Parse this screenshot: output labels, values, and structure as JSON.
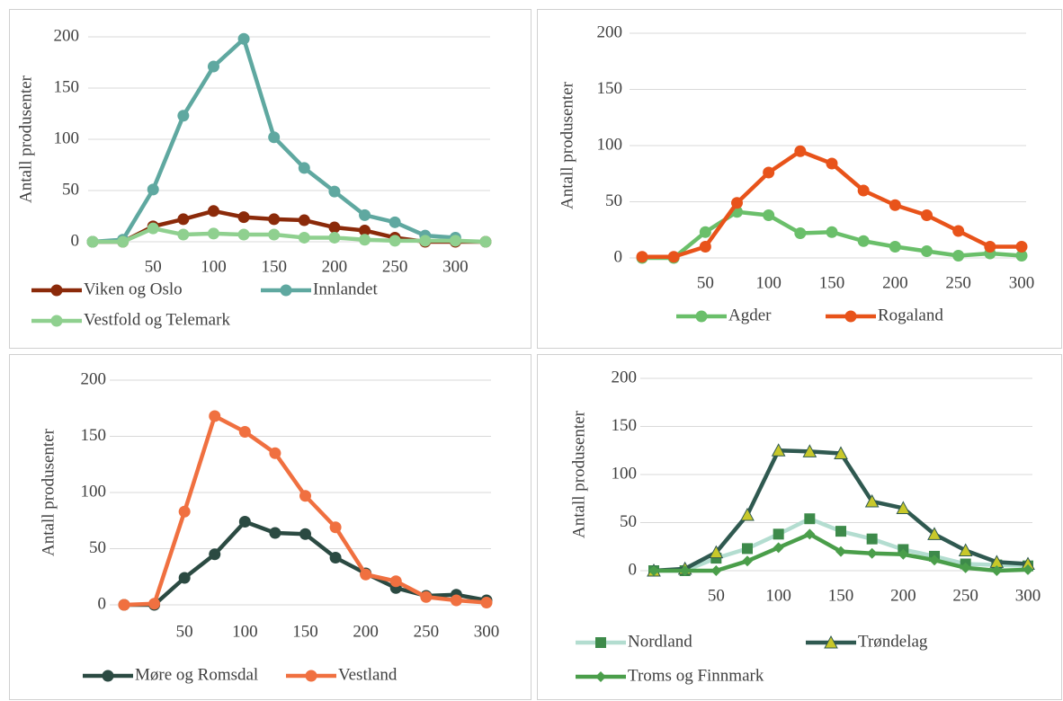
{
  "chart_data": [
    {
      "type": "line",
      "y_label": "Antall produsenter",
      "x": [
        0,
        25,
        50,
        75,
        100,
        125,
        150,
        175,
        200,
        225,
        250,
        275,
        300,
        325
      ],
      "xlim": [
        0,
        325
      ],
      "xticks": [
        50,
        100,
        150,
        200,
        250,
        300
      ],
      "ylim": [
        0,
        200
      ],
      "yticks": [
        0,
        50,
        100,
        150,
        200
      ],
      "grid": true,
      "series": [
        {
          "name": "Viken og Oslo",
          "color": "#8b2a0a",
          "marker": "circle",
          "marker_color": "#8b2a0a",
          "values": [
            0,
            0,
            15,
            22,
            30,
            24,
            22,
            21,
            14,
            11,
            4,
            0,
            0,
            0
          ]
        },
        {
          "name": "Innlandet",
          "color": "#5fa8a0",
          "marker": "circle",
          "marker_color": "#5fa8a0",
          "values": [
            0,
            2,
            51,
            123,
            171,
            198,
            102,
            72,
            49,
            26,
            19,
            6,
            4,
            null
          ]
        },
        {
          "name": "Vestfold og Telemark",
          "color": "#8fd08f",
          "marker": "circle",
          "marker_color": "#8fd08f",
          "values": [
            0,
            0,
            13,
            7,
            8,
            7,
            7,
            4,
            4,
            2,
            1,
            1,
            1,
            0
          ]
        }
      ]
    },
    {
      "type": "line",
      "y_label": "Antall produsenter",
      "x": [
        0,
        25,
        50,
        75,
        100,
        125,
        150,
        175,
        200,
        225,
        250,
        275,
        300
      ],
      "xlim": [
        0,
        300
      ],
      "xticks": [
        50,
        100,
        150,
        200,
        250,
        300
      ],
      "ylim": [
        0,
        200
      ],
      "yticks": [
        0,
        50,
        100,
        150,
        200
      ],
      "grid": true,
      "series": [
        {
          "name": "Agder",
          "color": "#6abf6a",
          "marker": "circle",
          "marker_color": "#6abf6a",
          "values": [
            0,
            0,
            23,
            41,
            38,
            22,
            23,
            15,
            10,
            6,
            2,
            4,
            2
          ]
        },
        {
          "name": "Rogaland",
          "color": "#e8531a",
          "marker": "circle",
          "marker_color": "#e8531a",
          "values": [
            1,
            1,
            10,
            49,
            76,
            95,
            84,
            60,
            47,
            38,
            24,
            10,
            10
          ]
        }
      ]
    },
    {
      "type": "line",
      "y_label": "Antall produsenter",
      "x": [
        0,
        25,
        50,
        75,
        100,
        125,
        150,
        175,
        200,
        225,
        250,
        275,
        300
      ],
      "xlim": [
        0,
        300
      ],
      "xticks": [
        50,
        100,
        150,
        200,
        250,
        300
      ],
      "ylim": [
        0,
        200
      ],
      "yticks": [
        0,
        50,
        100,
        150,
        200
      ],
      "grid": true,
      "series": [
        {
          "name": "Møre og Romsdal",
          "color": "#2b4a42",
          "marker": "circle",
          "marker_color": "#2b4a42",
          "values": [
            0,
            0,
            24,
            45,
            74,
            64,
            63,
            42,
            28,
            15,
            8,
            9,
            4
          ]
        },
        {
          "name": "Vestland",
          "color": "#f07040",
          "marker": "circle",
          "marker_color": "#f07040",
          "values": [
            0,
            1,
            83,
            168,
            154,
            135,
            97,
            69,
            27,
            21,
            7,
            4,
            2
          ]
        }
      ]
    },
    {
      "type": "line",
      "y_label": "Antall produsenter",
      "x": [
        0,
        25,
        50,
        75,
        100,
        125,
        150,
        175,
        200,
        225,
        250,
        275,
        300
      ],
      "xlim": [
        0,
        300
      ],
      "xticks": [
        50,
        100,
        150,
        200,
        250,
        300
      ],
      "ylim": [
        0,
        200
      ],
      "yticks": [
        0,
        50,
        100,
        150,
        200
      ],
      "grid": true,
      "series": [
        {
          "name": "Nordland",
          "color": "#b3ddd0",
          "marker": "square",
          "marker_color": "#3d8a4a",
          "values": [
            0,
            0,
            13,
            23,
            38,
            54,
            41,
            33,
            22,
            15,
            7,
            6,
            5
          ]
        },
        {
          "name": "Trøndelag",
          "color": "#2f5950",
          "marker": "triangle",
          "marker_color": "#c8c82a",
          "values": [
            0,
            2,
            19,
            58,
            125,
            124,
            122,
            72,
            65,
            38,
            21,
            9,
            7
          ]
        },
        {
          "name": "Troms og Finnmark",
          "color": "#4a9e4a",
          "marker": "diamond",
          "marker_color": "#4a9e4a",
          "values": [
            0,
            0,
            0,
            10,
            24,
            38,
            20,
            18,
            17,
            11,
            3,
            0,
            1
          ]
        }
      ]
    }
  ]
}
